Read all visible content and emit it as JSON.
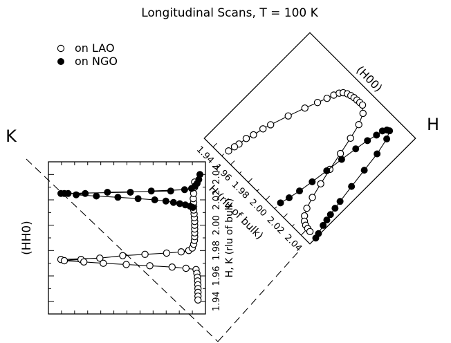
{
  "chart_data": [
    {
      "type": "scatter",
      "panel": "(HH0)",
      "title": "Longitudinal Scans, T = 100 K",
      "ylabel": "H, K (rlu of bulk)",
      "ylim": [
        1.93,
        2.05
      ],
      "yticks": [
        "1.94",
        "1.96",
        "1.98",
        "2.00",
        "2.02",
        "2.04"
      ],
      "axis_marker": "K",
      "grid": false,
      "legend": "top-left",
      "series": [
        {
          "name": "on LAO",
          "marker": "open-circle",
          "points": [
            {
              "i": 0.0,
              "y": 1.973
            },
            {
              "i": 0.025,
              "y": 1.972
            },
            {
              "i": 0.145,
              "y": 1.973
            },
            {
              "i": 0.28,
              "y": 1.974
            },
            {
              "i": 0.445,
              "y": 1.976
            },
            {
              "i": 0.605,
              "y": 1.977
            },
            {
              "i": 0.76,
              "y": 1.978
            },
            {
              "i": 0.865,
              "y": 1.979
            },
            {
              "i": 0.92,
              "y": 1.98
            },
            {
              "i": 0.945,
              "y": 1.982
            },
            {
              "i": 0.955,
              "y": 1.985
            },
            {
              "i": 0.96,
              "y": 1.988
            },
            {
              "i": 0.962,
              "y": 1.991
            },
            {
              "i": 0.962,
              "y": 1.994
            },
            {
              "i": 0.962,
              "y": 1.997
            },
            {
              "i": 0.962,
              "y": 2.0
            },
            {
              "i": 0.962,
              "y": 2.003
            },
            {
              "i": 0.96,
              "y": 2.006
            },
            {
              "i": 0.958,
              "y": 2.009
            },
            {
              "i": 0.955,
              "y": 2.012
            },
            {
              "i": 0.955,
              "y": 2.015
            },
            {
              "i": 0.955,
              "y": 2.018
            },
            {
              "i": 0.952,
              "y": 2.021
            },
            {
              "i": 0.955,
              "y": 2.025
            },
            {
              "i": 0.962,
              "y": 2.03
            },
            {
              "i": 0.962,
              "y": 2.034
            },
            {
              "i": 0.9,
              "y": 1.966
            },
            {
              "i": 0.972,
              "y": 1.965
            },
            {
              "i": 0.978,
              "y": 1.962
            },
            {
              "i": 0.982,
              "y": 1.959
            },
            {
              "i": 0.984,
              "y": 1.956
            },
            {
              "i": 0.985,
              "y": 1.953
            },
            {
              "i": 0.986,
              "y": 1.95
            },
            {
              "i": 0.986,
              "y": 1.947
            },
            {
              "i": 0.986,
              "y": 1.944
            },
            {
              "i": 0.986,
              "y": 1.941
            },
            {
              "i": 0.8,
              "y": 1.967
            },
            {
              "i": 0.64,
              "y": 1.968
            },
            {
              "i": 0.47,
              "y": 1.969
            },
            {
              "i": 0.305,
              "y": 1.97
            },
            {
              "i": 0.165,
              "y": 1.971
            }
          ]
        },
        {
          "name": "on NGO",
          "marker": "filled-circle",
          "points": [
            {
              "i": 0.0,
              "y": 2.025
            },
            {
              "i": 0.025,
              "y": 2.025
            },
            {
              "i": 0.052,
              "y": 2.025
            },
            {
              "i": 0.175,
              "y": 2.025
            },
            {
              "i": 0.335,
              "y": 2.026
            },
            {
              "i": 0.5,
              "y": 2.026
            },
            {
              "i": 0.65,
              "y": 2.027
            },
            {
              "i": 0.79,
              "y": 2.027
            },
            {
              "i": 0.89,
              "y": 2.028
            },
            {
              "i": 0.94,
              "y": 2.029
            },
            {
              "i": 0.965,
              "y": 2.031
            },
            {
              "i": 0.98,
              "y": 2.033
            },
            {
              "i": 0.992,
              "y": 2.036
            },
            {
              "i": 1.0,
              "y": 2.04
            },
            {
              "i": 0.11,
              "y": 2.024
            },
            {
              "i": 0.255,
              "y": 2.023
            },
            {
              "i": 0.41,
              "y": 2.022
            },
            {
              "i": 0.555,
              "y": 2.021
            },
            {
              "i": 0.675,
              "y": 2.02
            },
            {
              "i": 0.755,
              "y": 2.019
            },
            {
              "i": 0.81,
              "y": 2.018
            },
            {
              "i": 0.855,
              "y": 2.017
            },
            {
              "i": 0.895,
              "y": 2.016
            },
            {
              "i": 0.93,
              "y": 2.015
            },
            {
              "i": 0.95,
              "y": 2.014
            }
          ]
        }
      ]
    },
    {
      "type": "scatter",
      "panel": "(H00)",
      "xlabel": "H (rlu of bulk)",
      "xlim": [
        1.93,
        2.05
      ],
      "xticks": [
        "1.94",
        "1.96",
        "1.98",
        "2.00",
        "2.02",
        "2.04"
      ],
      "axis_marker": "H",
      "grid": false,
      "series": [
        {
          "name": "on LAO",
          "marker": "open-circle",
          "points": [
            {
              "x": 1.951,
              "i": 0.0
            },
            {
              "x": 1.953,
              "i": 0.095
            },
            {
              "x": 1.956,
              "i": 0.225
            },
            {
              "x": 1.96,
              "i": 0.375
            },
            {
              "x": 1.965,
              "i": 0.52
            },
            {
              "x": 1.97,
              "i": 0.655
            },
            {
              "x": 1.974,
              "i": 0.755
            },
            {
              "x": 1.977,
              "i": 0.83
            },
            {
              "x": 1.979,
              "i": 0.885
            },
            {
              "x": 1.981,
              "i": 0.925
            },
            {
              "x": 1.983,
              "i": 0.95
            },
            {
              "x": 1.986,
              "i": 0.966
            },
            {
              "x": 1.989,
              "i": 0.976
            },
            {
              "x": 1.992,
              "i": 0.982
            },
            {
              "x": 1.995,
              "i": 0.985
            },
            {
              "x": 1.998,
              "i": 0.987
            },
            {
              "x": 2.001,
              "i": 0.988
            },
            {
              "x": 1.952,
              "i": 0.055
            },
            {
              "x": 1.954,
              "i": 0.165
            },
            {
              "x": 1.958,
              "i": 0.31
            },
            {
              "x": 2.006,
              "i": 0.945
            },
            {
              "x": 2.01,
              "i": 0.86
            },
            {
              "x": 2.013,
              "i": 0.74
            },
            {
              "x": 2.016,
              "i": 0.6
            },
            {
              "x": 2.019,
              "i": 0.455
            },
            {
              "x": 2.022,
              "i": 0.325
            },
            {
              "x": 2.025,
              "i": 0.205
            },
            {
              "x": 2.028,
              "i": 0.115
            },
            {
              "x": 2.031,
              "i": 0.06
            },
            {
              "x": 2.034,
              "i": 0.03
            },
            {
              "x": 2.037,
              "i": 0.015
            },
            {
              "x": 2.04,
              "i": 0.008
            },
            {
              "x": 2.043,
              "i": 0.004
            }
          ]
        },
        {
          "name": "on NGO",
          "marker": "filled-circle",
          "points": [
            {
              "x": 2.01,
              "i": 0.0
            },
            {
              "x": 2.012,
              "i": 0.075
            },
            {
              "x": 2.014,
              "i": 0.17
            },
            {
              "x": 2.016,
              "i": 0.29
            },
            {
              "x": 2.018,
              "i": 0.43
            },
            {
              "x": 2.02,
              "i": 0.575
            },
            {
              "x": 2.022,
              "i": 0.71
            },
            {
              "x": 2.024,
              "i": 0.82
            },
            {
              "x": 2.026,
              "i": 0.9
            },
            {
              "x": 2.027,
              "i": 0.955
            },
            {
              "x": 2.029,
              "i": 0.985
            },
            {
              "x": 2.031,
              "i": 0.995
            },
            {
              "x": 2.034,
              "i": 0.935
            },
            {
              "x": 2.037,
              "i": 0.8
            },
            {
              "x": 2.039,
              "i": 0.64
            },
            {
              "x": 2.041,
              "i": 0.48
            },
            {
              "x": 2.043,
              "i": 0.335
            },
            {
              "x": 2.045,
              "i": 0.21
            },
            {
              "x": 2.047,
              "i": 0.11
            },
            {
              "x": 2.049,
              "i": 0.04
            },
            {
              "x": 2.05,
              "i": 0.0
            },
            {
              "x": 2.044,
              "i": 0.27
            },
            {
              "x": 2.046,
              "i": 0.16
            }
          ]
        }
      ]
    }
  ]
}
